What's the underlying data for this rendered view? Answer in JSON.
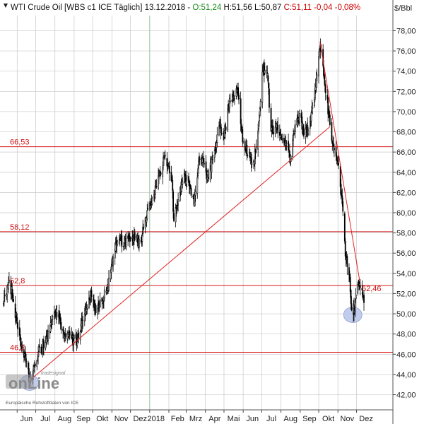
{
  "chart_data": {
    "type": "candlestick",
    "title": {
      "instrument": "WTI Crude Oil [WBS c1 ICE  Täglich]",
      "date": "13.12.2018",
      "open": "O:51,24",
      "high": "H:51,56",
      "low": "L:50,87",
      "close": "C:51,11",
      "change": "-0,04",
      "change_pct": "-0,08%"
    },
    "unit_label": "$/Bbl",
    "ylim": [
      40.5,
      79.5
    ],
    "y_ticks": [
      {
        "value": 42,
        "label": "42,00"
      },
      {
        "value": 44,
        "label": "44,00"
      },
      {
        "value": 46,
        "label": "46,00"
      },
      {
        "value": 48,
        "label": "48,00"
      },
      {
        "value": 50,
        "label": "50,00"
      },
      {
        "value": 52,
        "label": "52,00"
      },
      {
        "value": 54,
        "label": "54,00"
      },
      {
        "value": 56,
        "label": "56,00"
      },
      {
        "value": 58,
        "label": "58,00"
      },
      {
        "value": 60,
        "label": "60,00"
      },
      {
        "value": 62,
        "label": "62,00"
      },
      {
        "value": 64,
        "label": "64,00"
      },
      {
        "value": 66,
        "label": "66,00"
      },
      {
        "value": 68,
        "label": "68,00"
      },
      {
        "value": 70,
        "label": "70,00"
      },
      {
        "value": 72,
        "label": "72,00"
      },
      {
        "value": 74,
        "label": "74,00"
      },
      {
        "value": 76,
        "label": "76,00"
      },
      {
        "value": 78,
        "label": "78,00"
      }
    ],
    "x_ticks": [
      {
        "date": "2017-06-01",
        "label": "Jun"
      },
      {
        "date": "2017-07-01",
        "label": "Jul"
      },
      {
        "date": "2017-08-01",
        "label": "Aug"
      },
      {
        "date": "2017-09-01",
        "label": "Sep"
      },
      {
        "date": "2017-10-01",
        "label": "Okt"
      },
      {
        "date": "2017-11-01",
        "label": "Nov"
      },
      {
        "date": "2017-12-01",
        "label": "Dez"
      },
      {
        "date": "2018-01-01",
        "label": "2018"
      },
      {
        "date": "2018-02-01",
        "label": "Feb"
      },
      {
        "date": "2018-03-01",
        "label": "Mrz"
      },
      {
        "date": "2018-04-01",
        "label": "Apr"
      },
      {
        "date": "2018-05-01",
        "label": "Mai"
      },
      {
        "date": "2018-06-01",
        "label": "Jun"
      },
      {
        "date": "2018-07-01",
        "label": "Jul"
      },
      {
        "date": "2018-08-01",
        "label": "Aug"
      },
      {
        "date": "2018-09-01",
        "label": "Sep"
      },
      {
        "date": "2018-10-01",
        "label": "Okt"
      },
      {
        "date": "2018-11-01",
        "label": "Nov"
      },
      {
        "date": "2018-12-01",
        "label": "Dez"
      }
    ],
    "year_divider": "2018-01-01",
    "price_anchors": [
      [
        "2017-05-10",
        51.0
      ],
      [
        "2017-05-18",
        53.3
      ],
      [
        "2017-05-24",
        52.0
      ],
      [
        "2017-06-02",
        48.5
      ],
      [
        "2017-06-09",
        46.5
      ],
      [
        "2017-06-15",
        45.2
      ],
      [
        "2017-06-21",
        43.4
      ],
      [
        "2017-06-28",
        44.8
      ],
      [
        "2017-07-05",
        46.2
      ],
      [
        "2017-07-12",
        46.8
      ],
      [
        "2017-07-20",
        47.5
      ],
      [
        "2017-07-31",
        50.2
      ],
      [
        "2017-08-08",
        49.5
      ],
      [
        "2017-08-16",
        47.6
      ],
      [
        "2017-08-25",
        47.9
      ],
      [
        "2017-08-31",
        47.3
      ],
      [
        "2017-09-08",
        47.6
      ],
      [
        "2017-09-18",
        50.0
      ],
      [
        "2017-09-28",
        52.2
      ],
      [
        "2017-10-06",
        50.1
      ],
      [
        "2017-10-13",
        51.4
      ],
      [
        "2017-10-24",
        52.3
      ],
      [
        "2017-11-03",
        55.6
      ],
      [
        "2017-11-10",
        57.2
      ],
      [
        "2017-11-21",
        57.0
      ],
      [
        "2017-11-30",
        57.4
      ],
      [
        "2017-12-08",
        57.3
      ],
      [
        "2017-12-18",
        57.2
      ],
      [
        "2017-12-29",
        60.4
      ],
      [
        "2018-01-08",
        61.8
      ],
      [
        "2018-01-17",
        63.9
      ],
      [
        "2018-01-25",
        65.5
      ],
      [
        "2018-01-31",
        64.7
      ],
      [
        "2018-02-06",
        63.4
      ],
      [
        "2018-02-09",
        59.2
      ],
      [
        "2018-02-14",
        60.7
      ],
      [
        "2018-02-26",
        63.9
      ],
      [
        "2018-03-06",
        62.6
      ],
      [
        "2018-03-14",
        60.9
      ],
      [
        "2018-03-22",
        65.2
      ],
      [
        "2018-03-29",
        64.9
      ],
      [
        "2018-04-05",
        63.5
      ],
      [
        "2018-04-16",
        66.2
      ],
      [
        "2018-04-24",
        68.6
      ],
      [
        "2018-05-01",
        67.3
      ],
      [
        "2018-05-10",
        71.3
      ],
      [
        "2018-05-18",
        71.3
      ],
      [
        "2018-05-23",
        72.2
      ],
      [
        "2018-05-31",
        67.0
      ],
      [
        "2018-06-08",
        65.7
      ],
      [
        "2018-06-18",
        65.1
      ],
      [
        "2018-06-25",
        68.1
      ],
      [
        "2018-07-03",
        74.2
      ],
      [
        "2018-07-10",
        73.8
      ],
      [
        "2018-07-16",
        68.1
      ],
      [
        "2018-07-24",
        68.5
      ],
      [
        "2018-08-01",
        67.7
      ],
      [
        "2018-08-08",
        66.9
      ],
      [
        "2018-08-16",
        65.3
      ],
      [
        "2018-08-24",
        68.7
      ],
      [
        "2018-08-31",
        69.8
      ],
      [
        "2018-09-07",
        67.7
      ],
      [
        "2018-09-17",
        69.0
      ],
      [
        "2018-09-25",
        72.3
      ],
      [
        "2018-10-03",
        76.4
      ],
      [
        "2018-10-10",
        73.2
      ],
      [
        "2018-10-17",
        69.8
      ],
      [
        "2018-10-24",
        66.8
      ],
      [
        "2018-10-31",
        65.3
      ],
      [
        "2018-11-07",
        61.7
      ],
      [
        "2018-11-13",
        55.7
      ],
      [
        "2018-11-20",
        53.4
      ],
      [
        "2018-11-23",
        50.4
      ],
      [
        "2018-11-28",
        50.3
      ],
      [
        "2018-12-03",
        52.9
      ],
      [
        "2018-12-07",
        52.6
      ],
      [
        "2018-12-11",
        51.6
      ],
      [
        "2018-12-13",
        51.1
      ]
    ],
    "horizontal_levels": [
      {
        "value": 66.53,
        "label": "66,53"
      },
      {
        "value": 58.12,
        "label": "58,12"
      },
      {
        "value": 52.8,
        "label": "52,8"
      },
      {
        "value": 46.2,
        "label": "46,2"
      }
    ],
    "trend_lines": [
      {
        "from": [
          "2017-06-21",
          43.4
        ],
        "to": [
          "2018-10-19",
          68.5
        ]
      },
      {
        "from": [
          "2018-10-03",
          76.9
        ],
        "to": [
          "2018-12-06",
          53.3
        ]
      }
    ],
    "line_labels": [
      {
        "date": "2018-12-05",
        "value": 52.46,
        "label": "52,46"
      }
    ],
    "highlight_circles": [
      {
        "date": "2017-06-21",
        "value": 43.2
      },
      {
        "date": "2018-11-25",
        "value": 49.9
      }
    ],
    "grid": true,
    "colors": {
      "up_candle": "#ffffff",
      "down_candle": "#000000",
      "candle_outline": "#000000",
      "level_line": "#d41818",
      "trend_line": "#e02020",
      "grid_line": "#c8c8c8",
      "circle_fill": "#b8c4ea",
      "title_open": "#1a8a1a",
      "title_close": "#cc0000",
      "title_change": "#cc0000"
    },
    "source": "Europäische Rohstoffdaten von ICE",
    "logo": {
      "top": "tradesignal",
      "main": "onLine"
    }
  }
}
